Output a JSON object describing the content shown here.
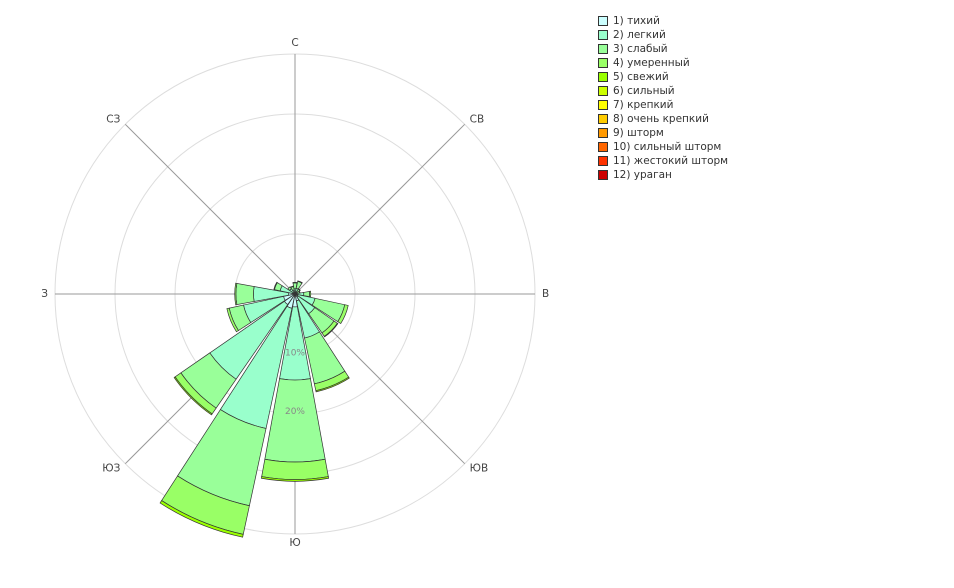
{
  "chart_data": {
    "type": "wind-rose",
    "directions": [
      "С",
      "СВ",
      "В",
      "ЮВ",
      "Ю",
      "ЮЗ",
      "З",
      "СЗ"
    ],
    "radial_ticks": [
      {
        "value": 10,
        "label": "10%"
      },
      {
        "value": 20,
        "label": "20%"
      }
    ],
    "radial_max": 41,
    "legend": [
      {
        "name": "1) тихий",
        "color": "#ccffff"
      },
      {
        "name": "2) легкий",
        "color": "#99ffcc"
      },
      {
        "name": "3) слабый",
        "color": "#99ff99"
      },
      {
        "name": "4) умеренный",
        "color": "#99ff66"
      },
      {
        "name": "5) свежий",
        "color": "#99ff00"
      },
      {
        "name": "6) сильный",
        "color": "#ccff00"
      },
      {
        "name": "7) крепкий",
        "color": "#ffff00"
      },
      {
        "name": "8) очень крепкий",
        "color": "#ffcc00"
      },
      {
        "name": "9) шторм",
        "color": "#ff9900"
      },
      {
        "name": "10) сильный шторм",
        "color": "#ff6600"
      },
      {
        "name": "11) жестокий шторм",
        "color": "#ff3300"
      },
      {
        "name": "12) ураган",
        "color": "#cc0000"
      }
    ],
    "sectors": [
      {
        "angle": 0,
        "values": [
          0.2,
          0.7,
          1.0,
          0.1,
          0,
          0,
          0,
          0,
          0,
          0,
          0,
          0
        ]
      },
      {
        "angle": 22.5,
        "values": [
          0.2,
          0.8,
          1.2,
          0.1,
          0,
          0,
          0,
          0,
          0,
          0,
          0,
          0
        ]
      },
      {
        "angle": 45,
        "values": [
          0.1,
          0.4,
          0.5,
          0.1,
          0,
          0,
          0,
          0,
          0,
          0,
          0,
          0
        ]
      },
      {
        "angle": 67.5,
        "values": [
          0.1,
          0.3,
          0.4,
          0.1,
          0,
          0,
          0,
          0,
          0,
          0,
          0,
          0
        ]
      },
      {
        "angle": 90,
        "values": [
          0.3,
          1.2,
          1.0,
          0.2,
          0,
          0,
          0,
          0,
          0,
          0,
          0,
          0
        ]
      },
      {
        "angle": 112.5,
        "values": [
          0.5,
          3.0,
          5.2,
          0.6,
          0,
          0,
          0,
          0,
          0,
          0,
          0,
          0
        ]
      },
      {
        "angle": 135,
        "values": [
          0.6,
          3.5,
          4.0,
          0.7,
          0.1,
          0,
          0,
          0,
          0,
          0,
          0,
          0
        ]
      },
      {
        "angle": 157.5,
        "values": [
          1.2,
          6.5,
          8.0,
          1.2,
          0.2,
          0,
          0,
          0,
          0,
          0,
          0,
          0
        ]
      },
      {
        "angle": 180,
        "values": [
          2.2,
          12.5,
          14.0,
          3.0,
          0.3,
          0,
          0,
          0,
          0,
          0,
          0,
          0
        ]
      },
      {
        "angle": 202.5,
        "values": [
          2.5,
          21.0,
          13.5,
          5.0,
          0.5,
          0,
          0,
          0,
          0,
          0,
          0,
          0
        ]
      },
      {
        "angle": 225,
        "values": [
          2.2,
          15.5,
          6.0,
          1.2,
          0.2,
          0,
          0,
          0,
          0,
          0,
          0,
          0
        ]
      },
      {
        "angle": 247.5,
        "values": [
          2.0,
          7.0,
          2.5,
          0.4,
          0,
          0,
          0,
          0,
          0,
          0,
          0,
          0
        ]
      },
      {
        "angle": 270,
        "values": [
          1.1,
          6.0,
          3.0,
          0.2,
          0,
          0,
          0,
          0,
          0,
          0,
          0,
          0
        ]
      },
      {
        "angle": 292.5,
        "values": [
          0.4,
          2.2,
          1.0,
          0.1,
          0,
          0,
          0,
          0,
          0,
          0,
          0,
          0
        ]
      },
      {
        "angle": 315,
        "values": [
          0.3,
          0.8,
          0.4,
          0,
          0,
          0,
          0,
          0,
          0,
          0,
          0,
          0
        ]
      },
      {
        "angle": 337.5,
        "values": [
          0.2,
          0.5,
          0.6,
          0.1,
          0,
          0,
          0,
          0,
          0,
          0,
          0,
          0
        ]
      }
    ]
  }
}
